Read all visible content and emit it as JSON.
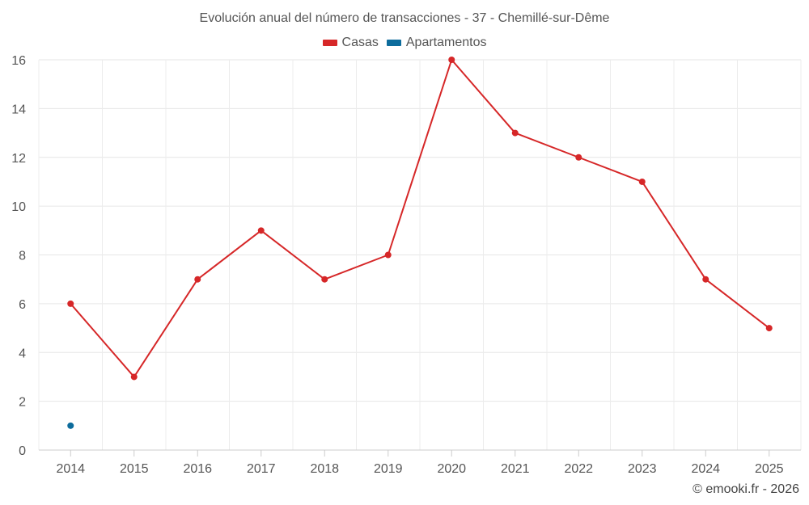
{
  "chart_data": {
    "type": "line",
    "title": "Evolución anual del número de transacciones - 37 - Chemillé-sur-Dême",
    "categories": [
      "2014",
      "2015",
      "2016",
      "2017",
      "2018",
      "2019",
      "2020",
      "2021",
      "2022",
      "2023",
      "2024",
      "2025"
    ],
    "series": [
      {
        "name": "Casas",
        "color": "#d62728",
        "values": [
          6,
          3,
          7,
          9,
          7,
          8,
          16,
          13,
          12,
          11,
          7,
          5
        ]
      },
      {
        "name": "Apartamentos",
        "color": "#0d6c9c",
        "values": [
          1,
          null,
          null,
          null,
          null,
          null,
          null,
          null,
          null,
          null,
          null,
          null
        ]
      }
    ],
    "ylim": [
      0,
      16
    ],
    "yticks": [
      "0",
      "2",
      "4",
      "6",
      "8",
      "10",
      "12",
      "14",
      "16"
    ],
    "grid": true,
    "legend_position": "top-center",
    "xlabel": "",
    "ylabel": ""
  },
  "footer": {
    "credit": "© emooki.fr - 2026"
  }
}
